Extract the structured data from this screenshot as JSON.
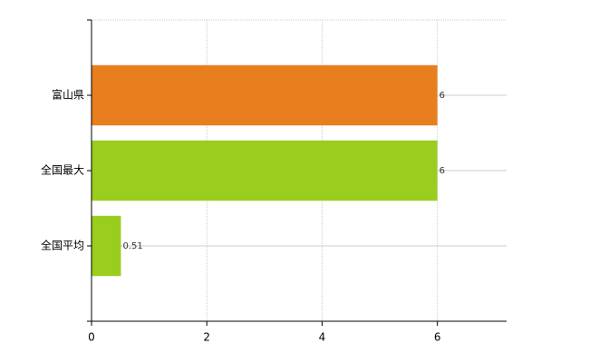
{
  "chart_data": {
    "type": "bar",
    "orientation": "horizontal",
    "categories": [
      "富山県",
      "全国最大",
      "全国平均"
    ],
    "values": [
      6,
      6,
      0.51
    ],
    "colors": [
      "#e87e1e",
      "#9acd1e",
      "#9acd1e"
    ],
    "xlim": [
      0,
      7.2
    ],
    "xticks": [
      0,
      2,
      4,
      6
    ],
    "grid": true
  }
}
